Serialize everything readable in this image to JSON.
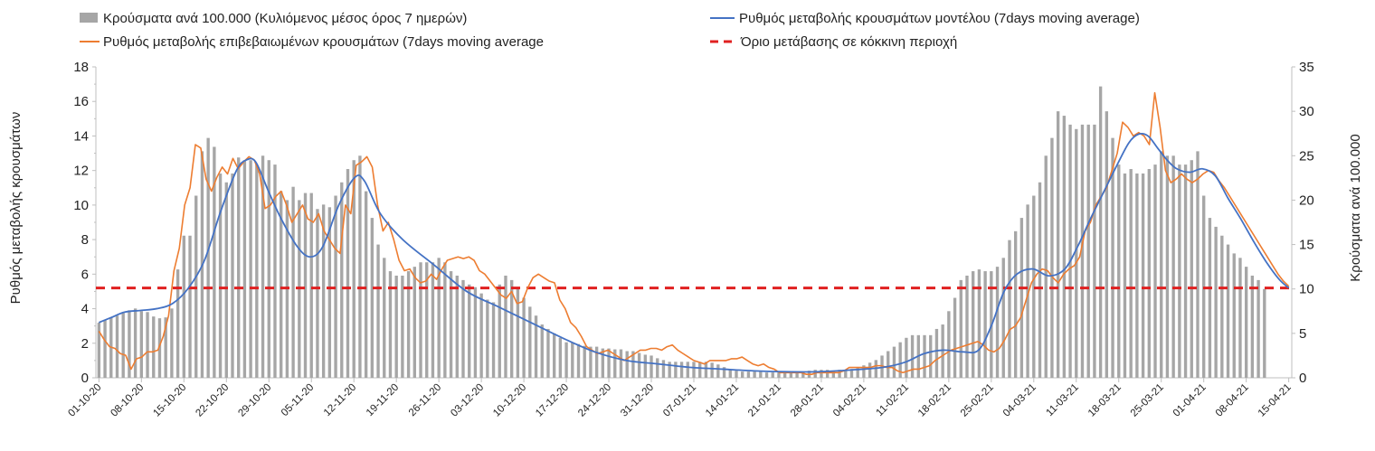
{
  "chart_data": {
    "type": "bar+line",
    "legend": [
      {
        "id": "bars",
        "label": "Κρούσματα ανά 100.000 (Κυλιόμενος μέσος όρος 7 ημερών)",
        "color": "#a6a6a6"
      },
      {
        "id": "model",
        "label": "Ρυθμός μεταβολής κρουσμάτων μοντέλου (7days moving average)",
        "color": "#4472c4"
      },
      {
        "id": "confirmed",
        "label": "Ρυθμός μεταβολής επιβεβαιωμένων κρουσμάτων (7days moving average",
        "color": "#ed7d31"
      },
      {
        "id": "threshold",
        "label": "Όριο μετάβασης σε κόκκινη περιοχή",
        "color": "#e02020"
      }
    ],
    "y_left": {
      "label": "Ρυθμός μεταβολής κρουσμάτων",
      "min": 0,
      "max": 18,
      "ticks": [
        "0",
        "2",
        "4",
        "6",
        "8",
        "10",
        "12",
        "14",
        "16",
        "18"
      ]
    },
    "y_right": {
      "label": "Κρούσματα ανά 100.000",
      "min": 0,
      "max": 35,
      "ticks": [
        "0",
        "5",
        "10",
        "15",
        "20",
        "25",
        "30",
        "35"
      ]
    },
    "x_tick_labels": [
      "01-10-20",
      "08-10-20",
      "15-10-20",
      "22-10-20",
      "29-10-20",
      "05-11-20",
      "12-11-20",
      "19-11-20",
      "26-11-20",
      "03-12-20",
      "10-12-20",
      "17-12-20",
      "24-12-20",
      "31-12-20",
      "07-01-21",
      "14-01-21",
      "21-01-21",
      "28-01-21",
      "04-02-21",
      "11-02-21",
      "18-02-21",
      "25-02-21",
      "04-03-21",
      "11-03-21",
      "18-03-21",
      "25-03-21",
      "01-04-21",
      "08-04-21",
      "15-04-21"
    ],
    "threshold": 5.2,
    "bars_per100k": [
      6.2,
      6.5,
      6.8,
      7.0,
      7.3,
      7.6,
      7.8,
      7.5,
      7.4,
      6.9,
      6.7,
      6.8,
      7.8,
      12.2,
      16.0,
      16.0,
      20.5,
      25.5,
      27.0,
      26.0,
      23.0,
      22.0,
      23.0,
      24.8,
      24.5,
      24.5,
      24.0,
      25.0,
      24.5,
      24.0,
      21.0,
      20.0,
      21.5,
      20.0,
      20.8,
      20.8,
      19.0,
      19.5,
      19.2,
      20.5,
      22.0,
      23.5,
      24.5,
      25.0,
      21.0,
      18.0,
      15.0,
      13.5,
      12.0,
      11.5,
      11.5,
      12.0,
      12.5,
      13.0,
      13.0,
      13.0,
      13.5,
      13.0,
      12.0,
      11.5,
      11.0,
      10.5,
      10.2,
      9.5,
      8.8,
      8.5,
      10.5,
      11.5,
      11.0,
      10.0,
      9.0,
      8.0,
      7.0,
      6.0,
      5.5,
      5.0,
      4.5,
      4.0,
      4.0,
      3.8,
      3.6,
      3.5,
      3.5,
      3.3,
      3.3,
      3.2,
      3.2,
      3.0,
      3.0,
      2.8,
      2.6,
      2.5,
      2.2,
      2.0,
      1.8,
      1.8,
      1.8,
      1.8,
      1.8,
      1.8,
      1.8,
      1.7,
      1.5,
      1.2,
      0.9,
      0.8,
      0.7,
      0.7,
      0.7,
      0.7,
      0.6,
      0.6,
      0.6,
      0.6,
      0.6,
      0.7,
      0.7,
      0.8,
      0.9,
      0.9,
      0.9,
      0.8,
      0.9,
      0.9,
      1.0,
      1.2,
      1.4,
      1.7,
      2.0,
      2.5,
      3.0,
      3.5,
      4.0,
      4.5,
      4.8,
      4.8,
      4.8,
      4.8,
      5.5,
      6.0,
      7.5,
      9.0,
      11.0,
      11.5,
      12.0,
      12.2,
      12.0,
      12.0,
      12.5,
      13.5,
      15.5,
      16.5,
      18.0,
      19.5,
      20.5,
      22.0,
      25.0,
      27.0,
      30.0,
      29.5,
      28.5,
      28.0,
      28.5,
      28.5,
      28.5,
      32.8,
      30.0,
      27.0,
      24.0,
      23.0,
      23.5,
      23.0,
      23.0,
      23.5,
      24.0,
      25.5,
      25.0,
      25.0,
      24.0,
      24.0,
      24.5,
      25.5,
      20.5,
      18.0,
      17.0,
      16.0,
      15.0,
      14.0,
      13.5,
      12.5,
      11.5,
      11.0,
      10.0
    ],
    "confirmed_rate": [
      2.7,
      2.2,
      1.8,
      1.7,
      1.4,
      1.3,
      0.5,
      1.1,
      1.2,
      1.5,
      1.5,
      1.6,
      2.4,
      3.6,
      6.2,
      7.5,
      10.0,
      11.0,
      13.5,
      13.3,
      11.5,
      10.8,
      11.6,
      12.2,
      11.8,
      12.7,
      12.1,
      12.5,
      12.8,
      12.6,
      11.8,
      9.8,
      10.0,
      10.5,
      10.8,
      10.0,
      9.0,
      9.5,
      10.0,
      9.2,
      9.0,
      9.5,
      8.5,
      8.0,
      7.5,
      7.2,
      10.0,
      9.5,
      12.3,
      12.5,
      12.8,
      12.2,
      10.0,
      8.5,
      9.0,
      8.0,
      6.8,
      6.2,
      6.3,
      5.8,
      5.5,
      5.6,
      6.0,
      5.7,
      6.3,
      6.8,
      6.9,
      7.0,
      6.9,
      7.0,
      6.8,
      6.2,
      6.0,
      5.6,
      5.2,
      4.8,
      4.6,
      5.0,
      4.3,
      4.4,
      5.2,
      5.8,
      6.0,
      5.8,
      5.6,
      5.5,
      4.5,
      4.0,
      3.2,
      2.9,
      2.4,
      1.8,
      1.6,
      1.4,
      1.5,
      1.6,
      1.4,
      1.2,
      1.0,
      1.2,
      1.4,
      1.6,
      1.6,
      1.7,
      1.7,
      1.6,
      1.8,
      1.9,
      1.6,
      1.4,
      1.2,
      1.0,
      0.9,
      0.8,
      1.0,
      1.0,
      1.0,
      1.0,
      1.1,
      1.1,
      1.2,
      1.0,
      0.8,
      0.7,
      0.8,
      0.6,
      0.5,
      0.3,
      0.3,
      0.3,
      0.3,
      0.3,
      0.2,
      0.2,
      0.3,
      0.3,
      0.3,
      0.3,
      0.3,
      0.4,
      0.6,
      0.6,
      0.6,
      0.6,
      0.6,
      0.7,
      0.7,
      0.6,
      0.6,
      0.4,
      0.3,
      0.4,
      0.5,
      0.5,
      0.6,
      0.7,
      1.0,
      1.2,
      1.4,
      1.6,
      1.7,
      1.8,
      1.9,
      2.0,
      2.1,
      1.9,
      1.6,
      1.5,
      1.7,
      2.2,
      2.8,
      3.0,
      3.5,
      4.5,
      5.5,
      6.0,
      6.3,
      6.2,
      5.8,
      5.5,
      6.0,
      6.3,
      6.5,
      7.0,
      8.5,
      9.0,
      10.0,
      10.5,
      11.0,
      12.0,
      13.0,
      14.8,
      14.5,
      14.0,
      14.2,
      14.0,
      13.5,
      16.5,
      14.5,
      12.0,
      11.3,
      11.5,
      11.8,
      11.5,
      11.3,
      11.5,
      11.8,
      12.0,
      11.9,
      11.4,
      11.0,
      10.5,
      10.0,
      9.5,
      9.0,
      8.5,
      8.0,
      7.5,
      7.0,
      6.5,
      6.0,
      5.6,
      5.3
    ],
    "model_rate": [
      [
        0,
        3.2
      ],
      [
        4,
        3.5
      ],
      [
        8,
        3.8
      ],
      [
        13,
        3.9
      ],
      [
        18,
        4.0
      ],
      [
        23,
        4.3
      ],
      [
        28,
        5.2
      ],
      [
        33,
        6.8
      ],
      [
        38,
        9.6
      ],
      [
        43,
        12.0
      ],
      [
        46,
        12.6
      ],
      [
        49,
        12.5
      ],
      [
        53,
        10.8
      ],
      [
        57,
        9.2
      ],
      [
        62,
        7.6
      ],
      [
        66,
        7.0
      ],
      [
        70,
        7.6
      ],
      [
        75,
        10.0
      ],
      [
        80,
        11.6
      ],
      [
        83,
        11.4
      ],
      [
        88,
        9.5
      ],
      [
        95,
        8.0
      ],
      [
        105,
        6.5
      ],
      [
        115,
        5.0
      ],
      [
        125,
        4.1
      ],
      [
        135,
        3.2
      ],
      [
        145,
        2.3
      ],
      [
        155,
        1.5
      ],
      [
        165,
        1.0
      ],
      [
        175,
        0.8
      ],
      [
        185,
        0.6
      ],
      [
        195,
        0.5
      ],
      [
        205,
        0.4
      ],
      [
        215,
        0.35
      ],
      [
        225,
        0.35
      ],
      [
        235,
        0.45
      ],
      [
        245,
        0.6
      ],
      [
        252,
        0.9
      ],
      [
        258,
        1.4
      ],
      [
        264,
        1.6
      ],
      [
        270,
        1.5
      ],
      [
        275,
        1.6
      ],
      [
        279,
        3.0
      ],
      [
        283,
        5.0
      ],
      [
        287,
        6.0
      ],
      [
        292,
        6.3
      ],
      [
        297,
        5.9
      ],
      [
        302,
        6.3
      ],
      [
        306,
        7.6
      ],
      [
        310,
        9.2
      ],
      [
        314,
        10.7
      ],
      [
        318,
        12.2
      ],
      [
        322,
        13.6
      ],
      [
        325,
        14.1
      ],
      [
        328,
        14.0
      ],
      [
        331,
        13.3
      ],
      [
        334,
        12.6
      ],
      [
        337,
        12.1
      ],
      [
        341,
        11.9
      ],
      [
        345,
        12.1
      ],
      [
        349,
        11.7
      ],
      [
        353,
        10.4
      ],
      [
        357,
        9.2
      ],
      [
        361,
        7.9
      ],
      [
        365,
        6.7
      ],
      [
        369,
        5.7
      ],
      [
        372,
        5.2
      ]
    ]
  }
}
